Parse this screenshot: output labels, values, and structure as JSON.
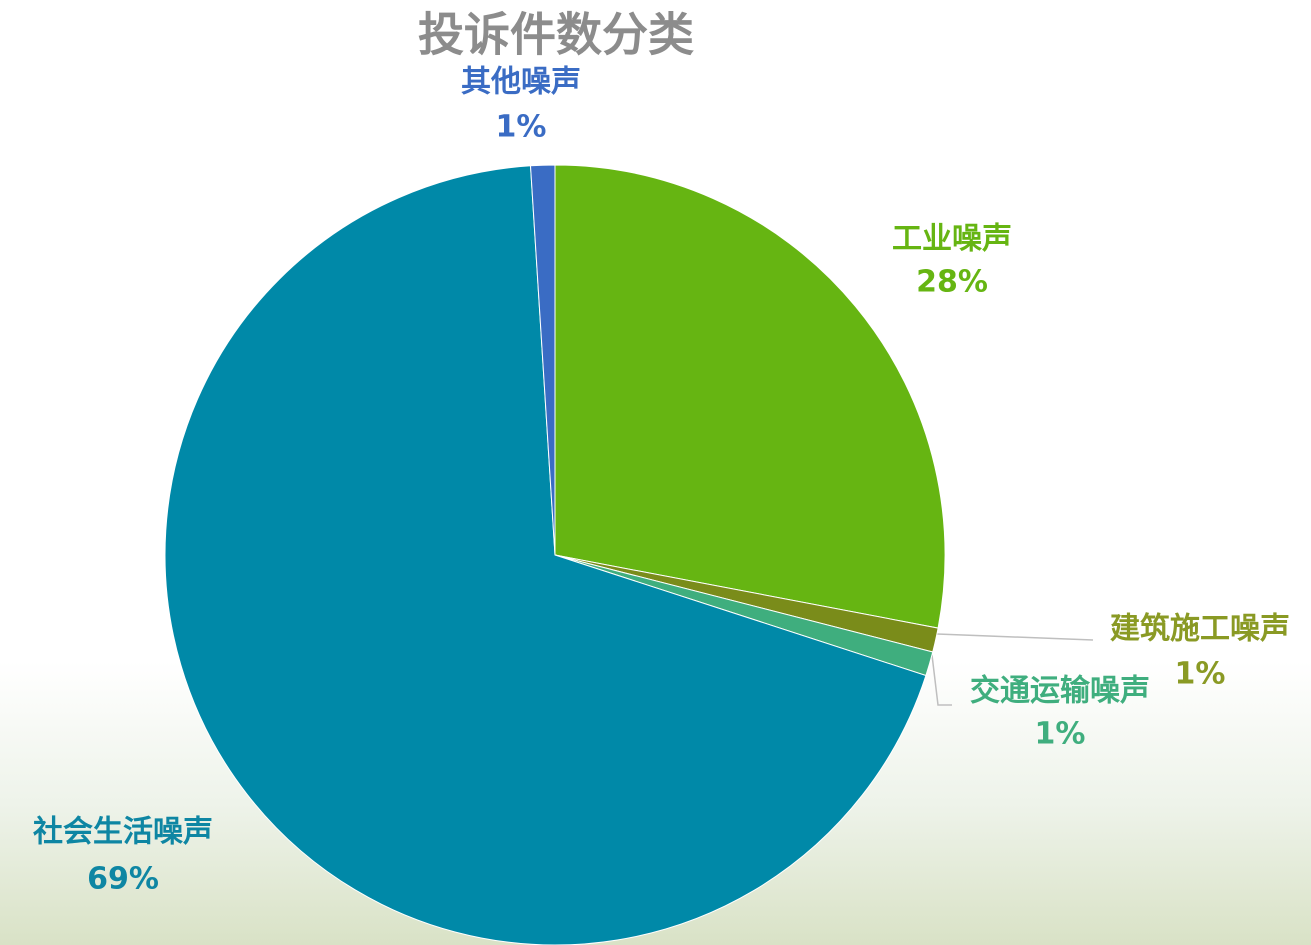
{
  "chart_data": {
    "type": "pie",
    "title": "投诉件数分类",
    "categories": [
      "工业噪声",
      "建筑施工噪声",
      "交通运输噪声",
      "社会生活噪声",
      "其他噪声"
    ],
    "values": [
      28,
      1,
      1,
      69,
      1
    ],
    "value_labels": [
      "28%",
      "1%",
      "1%",
      "69%",
      "1%"
    ],
    "colors": [
      "#66b512",
      "#7a8c1a",
      "#3fae7e",
      "#0089a8",
      "#3a6cc4"
    ],
    "label_colors": [
      "#66b512",
      "#8a9a24",
      "#3fae7e",
      "#0e86a3",
      "#3a6cc4"
    ]
  }
}
